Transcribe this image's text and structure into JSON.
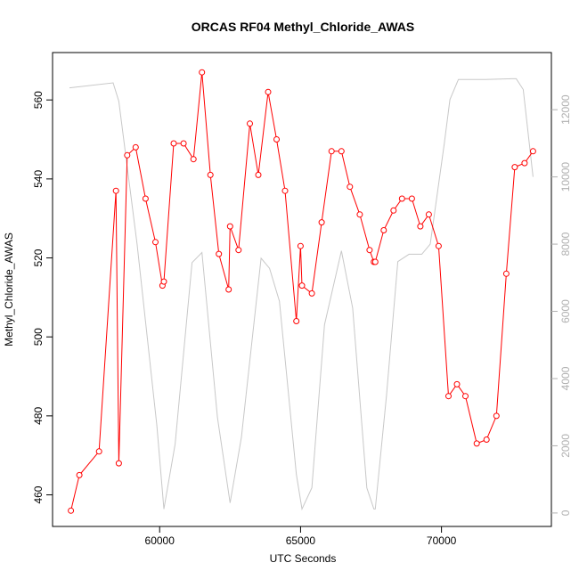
{
  "chart_data": {
    "type": "line",
    "title": "ORCAS RF04 Methyl_Chloride_AWAS",
    "xlabel": "UTC Seconds",
    "ylabel": "Methyl_Chloride_AWAS",
    "y2label": "",
    "xlim": [
      56200,
      73900
    ],
    "ylim": [
      452,
      572
    ],
    "y2lim": [
      -400,
      13700
    ],
    "xticks": [
      60000,
      65000,
      70000
    ],
    "yticks": [
      460,
      480,
      500,
      520,
      540,
      560
    ],
    "y2ticks": [
      0,
      2000,
      4000,
      6000,
      8000,
      10000,
      12000
    ],
    "grid": false,
    "series": [
      {
        "axis": "left",
        "color": "#ff0000",
        "marker": "open-circle",
        "x": [
          56850,
          57150,
          57850,
          58450,
          58550,
          58850,
          59150,
          59500,
          59850,
          60100,
          60150,
          60500,
          60850,
          61200,
          61500,
          61800,
          62100,
          62450,
          62500,
          62800,
          63200,
          63500,
          63850,
          64150,
          64450,
          64850,
          65000,
          65050,
          65400,
          65750,
          66100,
          66450,
          66750,
          67100,
          67450,
          67600,
          67650,
          67950,
          68300,
          68600,
          68950,
          69250,
          69550,
          69900,
          70250,
          70550,
          70850,
          71250,
          71600,
          71950,
          72300,
          72600,
          72950,
          73250
        ],
        "y": [
          456,
          465,
          471,
          537,
          468,
          546,
          548,
          535,
          524,
          513,
          514,
          549,
          549,
          545,
          567,
          541,
          521,
          512,
          528,
          522,
          554,
          541,
          562,
          550,
          537,
          504,
          523,
          513,
          511,
          529,
          547,
          547,
          538,
          531,
          522,
          519,
          519,
          527,
          532,
          535,
          535,
          528,
          531,
          523,
          485,
          488,
          485,
          473,
          474,
          480,
          516,
          543,
          544,
          547
        ]
      },
      {
        "axis": "right",
        "color": "#c8c8c8",
        "marker": "none",
        "x": [
          56800,
          58350,
          58550,
          59200,
          59900,
          60150,
          60550,
          61150,
          61500,
          62050,
          62500,
          62900,
          63600,
          63900,
          64250,
          64850,
          65050,
          65400,
          65850,
          66450,
          66850,
          67350,
          67600,
          67650,
          68050,
          68450,
          68850,
          69300,
          69600,
          70100,
          70300,
          70600,
          71550,
          72500,
          72650,
          72900,
          73250
        ],
        "y": [
          12650,
          12800,
          12250,
          8000,
          2600,
          120,
          2050,
          7450,
          7750,
          2850,
          300,
          2250,
          7580,
          7280,
          6300,
          1150,
          120,
          750,
          5600,
          7800,
          6100,
          750,
          120,
          120,
          3500,
          7480,
          7700,
          7700,
          8000,
          11000,
          12300,
          12900,
          12900,
          12920,
          12920,
          12600,
          10000
        ]
      }
    ]
  }
}
